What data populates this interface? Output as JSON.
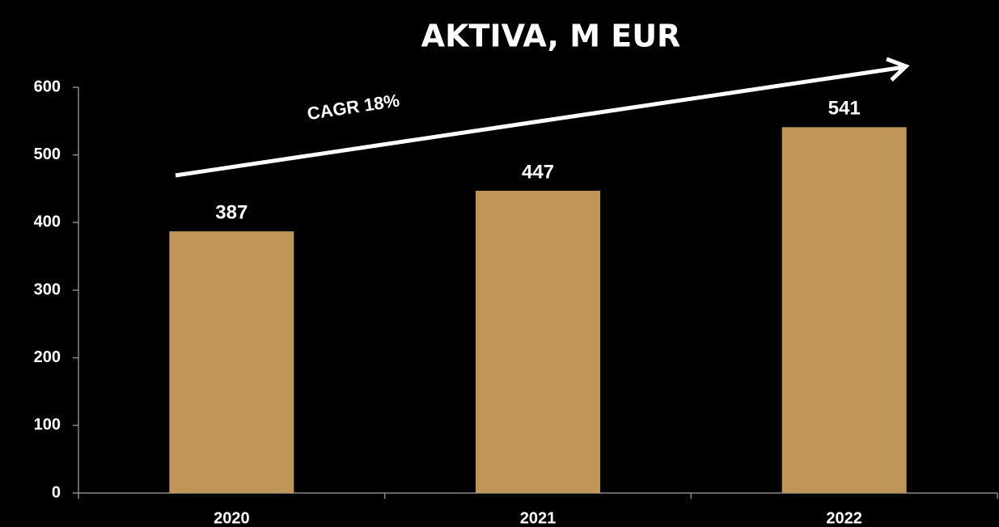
{
  "chart_data": {
    "type": "bar",
    "title": "AKTIVA, M EUR",
    "annotation": "CAGR 18%",
    "categories": [
      "2020",
      "2021",
      "2022"
    ],
    "values": [
      387,
      447,
      541
    ],
    "color": "#c09658",
    "ylim": [
      0,
      600
    ],
    "yticks": [
      0,
      100,
      200,
      300,
      400,
      500,
      600
    ],
    "grid": false
  }
}
